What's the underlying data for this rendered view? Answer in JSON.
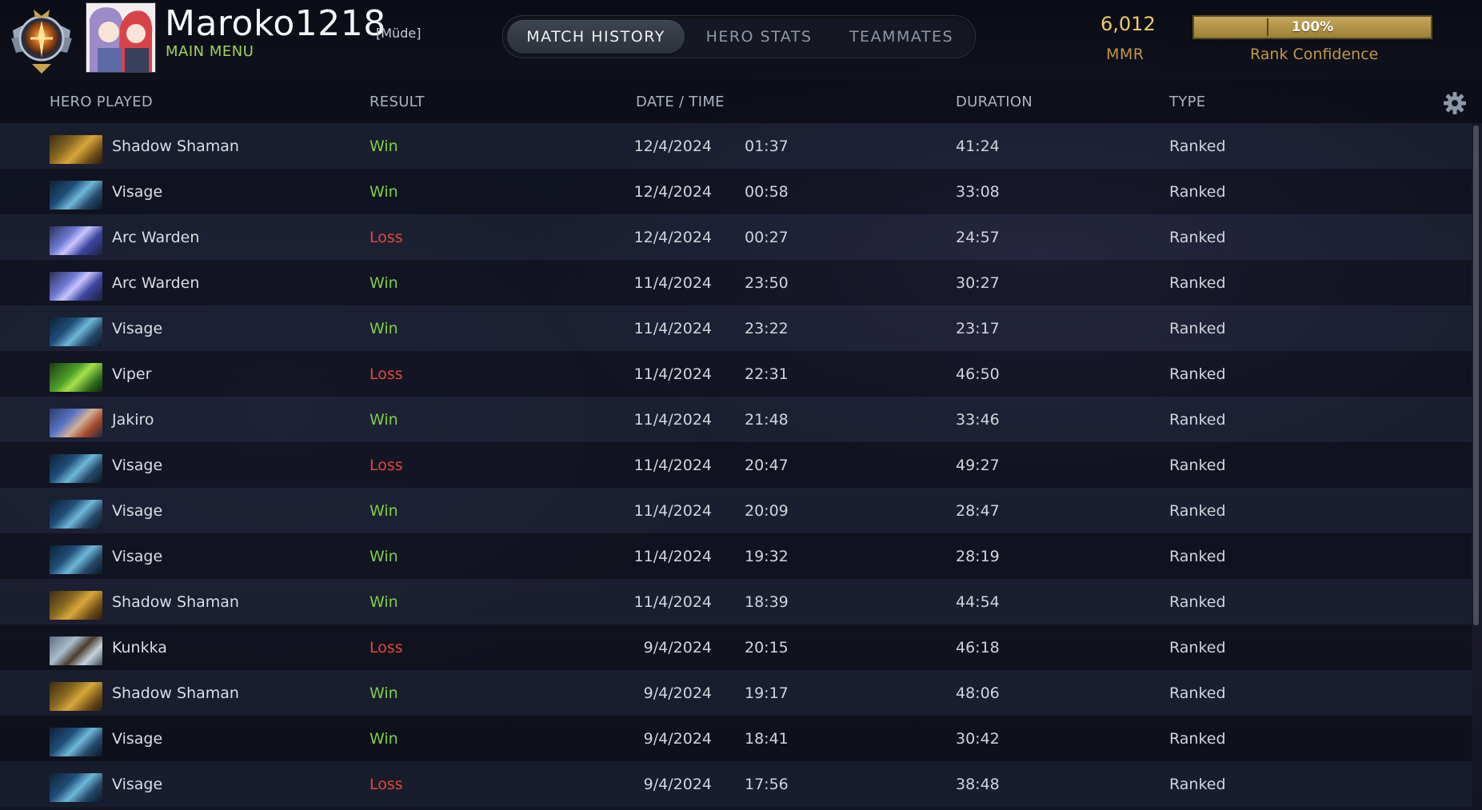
{
  "header": {
    "player_name": "Maroko1218",
    "player_tag": "[Müde]",
    "main_menu": "MAIN MENU",
    "tabs": [
      {
        "label": "MATCH HISTORY",
        "active": true
      },
      {
        "label": "HERO STATS",
        "active": false
      },
      {
        "label": "TEAMMATES",
        "active": false
      }
    ],
    "mmr_value": "6,012",
    "mmr_label": "MMR",
    "rank_confidence_value": "100%",
    "rank_confidence_fraction": 1.0,
    "rank_confidence_label": "Rank Confidence",
    "icons": {
      "rank": "rank-medal-icon",
      "settings": "gear-icon"
    }
  },
  "table": {
    "columns": [
      "HERO PLAYED",
      "RESULT",
      "DATE / TIME",
      "DURATION",
      "TYPE"
    ],
    "rows": [
      {
        "hero": "Shadow Shaman",
        "hero_icon": "shadow-shaman",
        "result": "Win",
        "date": "12/4/2024",
        "time": "01:37",
        "duration": "41:24",
        "type": "Ranked"
      },
      {
        "hero": "Visage",
        "hero_icon": "visage",
        "result": "Win",
        "date": "12/4/2024",
        "time": "00:58",
        "duration": "33:08",
        "type": "Ranked"
      },
      {
        "hero": "Arc Warden",
        "hero_icon": "arc-warden",
        "result": "Loss",
        "date": "12/4/2024",
        "time": "00:27",
        "duration": "24:57",
        "type": "Ranked"
      },
      {
        "hero": "Arc Warden",
        "hero_icon": "arc-warden",
        "result": "Win",
        "date": "11/4/2024",
        "time": "23:50",
        "duration": "30:27",
        "type": "Ranked"
      },
      {
        "hero": "Visage",
        "hero_icon": "visage",
        "result": "Win",
        "date": "11/4/2024",
        "time": "23:22",
        "duration": "23:17",
        "type": "Ranked"
      },
      {
        "hero": "Viper",
        "hero_icon": "viper",
        "result": "Loss",
        "date": "11/4/2024",
        "time": "22:31",
        "duration": "46:50",
        "type": "Ranked"
      },
      {
        "hero": "Jakiro",
        "hero_icon": "jakiro",
        "result": "Win",
        "date": "11/4/2024",
        "time": "21:48",
        "duration": "33:46",
        "type": "Ranked"
      },
      {
        "hero": "Visage",
        "hero_icon": "visage",
        "result": "Loss",
        "date": "11/4/2024",
        "time": "20:47",
        "duration": "49:27",
        "type": "Ranked"
      },
      {
        "hero": "Visage",
        "hero_icon": "visage",
        "result": "Win",
        "date": "11/4/2024",
        "time": "20:09",
        "duration": "28:47",
        "type": "Ranked"
      },
      {
        "hero": "Visage",
        "hero_icon": "visage",
        "result": "Win",
        "date": "11/4/2024",
        "time": "19:32",
        "duration": "28:19",
        "type": "Ranked"
      },
      {
        "hero": "Shadow Shaman",
        "hero_icon": "shadow-shaman",
        "result": "Win",
        "date": "11/4/2024",
        "time": "18:39",
        "duration": "44:54",
        "type": "Ranked"
      },
      {
        "hero": "Kunkka",
        "hero_icon": "kunkka",
        "result": "Loss",
        "date": "9/4/2024",
        "time": "20:15",
        "duration": "46:18",
        "type": "Ranked"
      },
      {
        "hero": "Shadow Shaman",
        "hero_icon": "shadow-shaman",
        "result": "Win",
        "date": "9/4/2024",
        "time": "19:17",
        "duration": "48:06",
        "type": "Ranked"
      },
      {
        "hero": "Visage",
        "hero_icon": "visage",
        "result": "Win",
        "date": "9/4/2024",
        "time": "18:41",
        "duration": "30:42",
        "type": "Ranked"
      },
      {
        "hero": "Visage",
        "hero_icon": "visage",
        "result": "Loss",
        "date": "9/4/2024",
        "time": "17:56",
        "duration": "38:48",
        "type": "Ranked"
      }
    ]
  },
  "colors": {
    "win": "#7fcf45",
    "loss": "#e0483c",
    "gold": "#c4973f",
    "menu_green": "#a4d25c"
  }
}
